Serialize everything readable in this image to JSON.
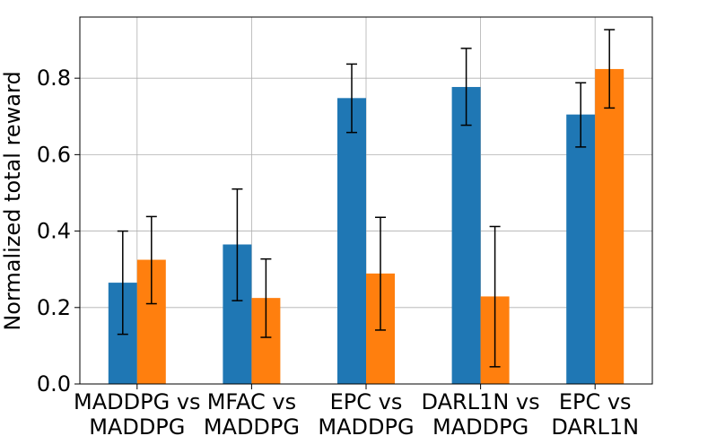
{
  "chart_data": {
    "type": "bar",
    "title": "",
    "xlabel": "",
    "ylabel": "Normalized total reward",
    "ylim": [
      0,
      0.96
    ],
    "yticks": [
      "0.0",
      "0.2",
      "0.4",
      "0.6",
      "0.8"
    ],
    "grid": true,
    "categories": [
      [
        "MADDPG vs",
        "MADDPG"
      ],
      [
        "MFAC vs",
        "MADDPG"
      ],
      [
        "EPC vs",
        "MADDPG"
      ],
      [
        "DARL1N vs",
        "MADDPG"
      ],
      [
        "EPC vs",
        "DARL1N"
      ]
    ],
    "series": [
      {
        "color": "#1f77b4",
        "values": [
          0.265,
          0.365,
          0.748,
          0.777,
          0.705
        ],
        "err_low": [
          0.13,
          0.218,
          0.658,
          0.677,
          0.62
        ],
        "err_high": [
          0.4,
          0.51,
          0.837,
          0.878,
          0.788
        ]
      },
      {
        "color": "#ff7f0e",
        "values": [
          0.325,
          0.225,
          0.289,
          0.229,
          0.824
        ],
        "err_low": [
          0.21,
          0.122,
          0.141,
          0.045,
          0.722
        ],
        "err_high": [
          0.438,
          0.327,
          0.436,
          0.412,
          0.927
        ]
      }
    ]
  }
}
